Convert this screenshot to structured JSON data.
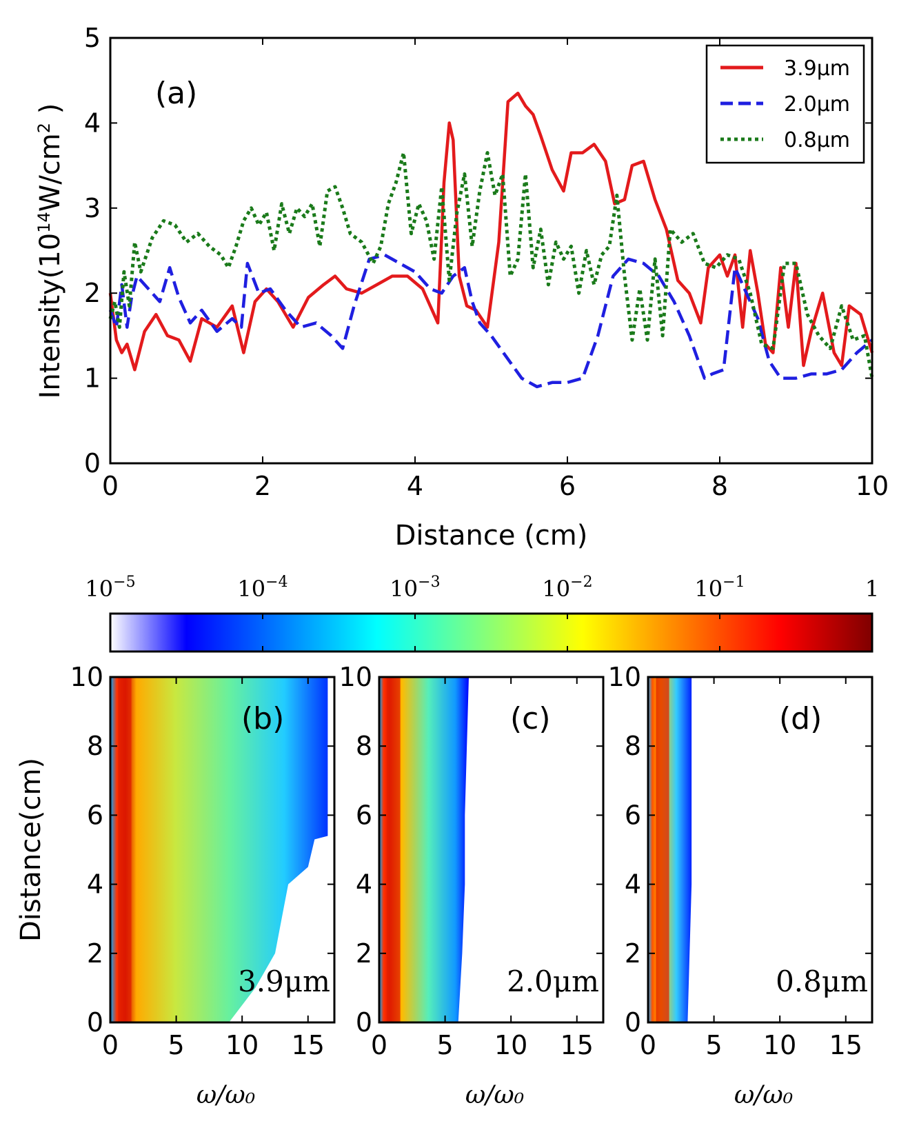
{
  "chart_data": [
    {
      "type": "line",
      "panel_label": "(a)",
      "xlabel": "Distance (cm)",
      "ylabel_main": "Intensity(10",
      "ylabel_exp1": "14",
      "ylabel_mid": "W/cm",
      "ylabel_exp2": "2",
      "ylabel_end": " )",
      "xlim": [
        0,
        10
      ],
      "ylim": [
        0,
        5
      ],
      "xticks": [
        "0",
        "2",
        "4",
        "6",
        "8",
        "10"
      ],
      "yticks": [
        "0",
        "1",
        "2",
        "3",
        "4",
        "5"
      ],
      "legend_position": "top-right",
      "series": [
        {
          "name": "3.9μm",
          "color": "#e31a1c",
          "style": "solid",
          "x": [
            0,
            0.08,
            0.15,
            0.22,
            0.32,
            0.45,
            0.6,
            0.75,
            0.9,
            1.05,
            1.2,
            1.4,
            1.6,
            1.75,
            1.9,
            2.05,
            2.2,
            2.4,
            2.6,
            2.8,
            2.95,
            3.1,
            3.3,
            3.5,
            3.7,
            3.9,
            4.1,
            4.3,
            4.38,
            4.45,
            4.5,
            4.58,
            4.68,
            4.8,
            4.95,
            5.1,
            5.22,
            5.35,
            5.45,
            5.55,
            5.65,
            5.8,
            5.95,
            6.05,
            6.2,
            6.35,
            6.5,
            6.62,
            6.75,
            6.85,
            7.0,
            7.15,
            7.3,
            7.45,
            7.6,
            7.75,
            7.85,
            8.0,
            8.1,
            8.2,
            8.3,
            8.4,
            8.5,
            8.6,
            8.7,
            8.8,
            8.9,
            9.0,
            9.1,
            9.2,
            9.35,
            9.5,
            9.6,
            9.7,
            9.85,
            10.0
          ],
          "y": [
            2.0,
            1.45,
            1.3,
            1.4,
            1.1,
            1.55,
            1.75,
            1.5,
            1.45,
            1.2,
            1.7,
            1.6,
            1.85,
            1.3,
            1.9,
            2.05,
            1.9,
            1.6,
            1.95,
            2.1,
            2.2,
            2.05,
            2.0,
            2.1,
            2.2,
            2.2,
            2.05,
            1.65,
            3.3,
            4.0,
            3.8,
            2.2,
            1.85,
            1.8,
            1.6,
            2.6,
            4.25,
            4.35,
            4.2,
            4.1,
            3.85,
            3.45,
            3.2,
            3.65,
            3.65,
            3.75,
            3.55,
            3.05,
            3.1,
            3.5,
            3.55,
            3.1,
            2.75,
            2.15,
            2.0,
            1.65,
            2.3,
            2.45,
            2.2,
            2.45,
            1.6,
            2.5,
            2.0,
            1.4,
            1.3,
            2.3,
            1.6,
            2.35,
            1.15,
            1.55,
            2.0,
            1.3,
            1.15,
            1.85,
            1.75,
            1.3
          ]
        },
        {
          "name": "2.0μm",
          "color": "#1f1fe0",
          "style": "dashed",
          "x": [
            0,
            0.08,
            0.15,
            0.22,
            0.28,
            0.35,
            0.5,
            0.65,
            0.78,
            0.9,
            1.05,
            1.2,
            1.4,
            1.6,
            1.72,
            1.8,
            1.95,
            2.1,
            2.3,
            2.5,
            2.7,
            2.9,
            3.05,
            3.2,
            3.4,
            3.6,
            3.8,
            4.0,
            4.2,
            4.35,
            4.5,
            4.65,
            4.75,
            4.85,
            5.0,
            5.2,
            5.4,
            5.6,
            5.8,
            6.0,
            6.2,
            6.4,
            6.6,
            6.8,
            7.0,
            7.2,
            7.4,
            7.6,
            7.8,
            7.9,
            8.05,
            8.2,
            8.35,
            8.5,
            8.65,
            8.8,
            9.0,
            9.2,
            9.4,
            9.6,
            9.8,
            10.0
          ],
          "y": [
            1.8,
            1.6,
            2.1,
            1.6,
            1.95,
            2.2,
            2.05,
            1.9,
            2.3,
            1.95,
            1.65,
            1.8,
            1.55,
            1.7,
            1.6,
            2.35,
            2.0,
            2.05,
            1.8,
            1.6,
            1.65,
            1.5,
            1.35,
            1.85,
            2.4,
            2.45,
            2.35,
            2.25,
            2.05,
            2.0,
            2.2,
            2.3,
            1.9,
            1.65,
            1.5,
            1.25,
            1.0,
            0.9,
            0.95,
            0.95,
            1.0,
            1.5,
            2.2,
            2.4,
            2.35,
            2.2,
            1.9,
            1.5,
            1.0,
            1.05,
            1.1,
            2.3,
            2.0,
            1.7,
            1.2,
            1.0,
            1.0,
            1.05,
            1.05,
            1.1,
            1.3,
            1.45
          ]
        },
        {
          "name": "0.8μm",
          "color": "#1a7a1a",
          "style": "dotted",
          "x": [
            0,
            0.06,
            0.12,
            0.18,
            0.25,
            0.32,
            0.4,
            0.55,
            0.7,
            0.85,
            1.0,
            1.15,
            1.3,
            1.45,
            1.55,
            1.65,
            1.75,
            1.85,
            1.95,
            2.05,
            2.15,
            2.25,
            2.35,
            2.45,
            2.55,
            2.65,
            2.75,
            2.85,
            2.95,
            3.05,
            3.15,
            3.3,
            3.45,
            3.55,
            3.65,
            3.75,
            3.85,
            3.95,
            4.05,
            4.15,
            4.25,
            4.35,
            4.45,
            4.55,
            4.65,
            4.75,
            4.85,
            4.95,
            5.05,
            5.15,
            5.25,
            5.35,
            5.45,
            5.55,
            5.65,
            5.75,
            5.85,
            5.95,
            6.05,
            6.15,
            6.25,
            6.35,
            6.45,
            6.55,
            6.65,
            6.75,
            6.85,
            6.95,
            7.05,
            7.15,
            7.25,
            7.35,
            7.5,
            7.65,
            7.8,
            7.95,
            8.1,
            8.25,
            8.4,
            8.55,
            8.7,
            8.85,
            9.0,
            9.15,
            9.3,
            9.45,
            9.6,
            9.75,
            9.9,
            10.0
          ],
          "y": [
            1.7,
            1.9,
            1.6,
            2.25,
            1.85,
            2.6,
            2.25,
            2.65,
            2.85,
            2.8,
            2.6,
            2.7,
            2.55,
            2.45,
            2.3,
            2.55,
            2.85,
            3.0,
            2.8,
            2.95,
            2.5,
            3.05,
            2.7,
            3.0,
            2.9,
            3.05,
            2.55,
            3.2,
            3.25,
            3.0,
            2.7,
            2.6,
            2.35,
            2.55,
            3.05,
            3.3,
            3.65,
            2.7,
            3.05,
            2.85,
            2.4,
            3.25,
            2.15,
            2.95,
            3.4,
            2.55,
            3.2,
            3.65,
            3.15,
            3.4,
            2.2,
            2.4,
            3.4,
            2.3,
            2.75,
            2.1,
            2.6,
            2.4,
            2.55,
            2.0,
            2.5,
            2.1,
            2.45,
            2.55,
            3.15,
            2.2,
            1.45,
            2.05,
            1.45,
            2.4,
            1.5,
            2.75,
            2.6,
            2.7,
            2.35,
            2.3,
            2.45,
            2.4,
            2.0,
            1.4,
            1.35,
            2.35,
            2.35,
            1.75,
            1.5,
            1.35,
            1.85,
            1.45,
            1.5,
            1.0
          ]
        }
      ]
    },
    {
      "type": "colorbar",
      "scale": "log",
      "tick_labels": [
        "10",
        "10",
        "10",
        "10",
        "10",
        "1"
      ],
      "tick_exponents": [
        "−5",
        "−4",
        "−3",
        "−2",
        "−1",
        ""
      ],
      "range": [
        1e-05,
        1
      ],
      "colormap": [
        "#ffffff",
        "#0000ff",
        "#00ffff",
        "#ffff00",
        "#ff0000",
        "#7f0000"
      ]
    },
    {
      "type": "heatmap",
      "panel_label": "(b)",
      "annotation": "3.9μm",
      "xlabel": "ω/ω₀",
      "ylabel": "Distance(cm)",
      "xlim": [
        0,
        17
      ],
      "ylim": [
        0,
        10
      ],
      "xticks": [
        "0",
        "5",
        "10",
        "15"
      ],
      "yticks": [
        "0",
        "2",
        "4",
        "6",
        "8",
        "10"
      ],
      "cutoff_vs_distance": [
        [
          0,
          9
        ],
        [
          1,
          11
        ],
        [
          2,
          12.5
        ],
        [
          3,
          13
        ],
        [
          4,
          13.5
        ],
        [
          4.5,
          15
        ],
        [
          5.3,
          15.5
        ],
        [
          5.4,
          16.5
        ],
        [
          10,
          16.5
        ]
      ]
    },
    {
      "type": "heatmap",
      "panel_label": "(c)",
      "annotation": "2.0μm",
      "xlabel": "ω/ω₀",
      "xlim": [
        0,
        17
      ],
      "ylim": [
        0,
        10
      ],
      "xticks": [
        "0",
        "5",
        "10",
        "15"
      ],
      "yticks": [
        "0",
        "2",
        "4",
        "6",
        "8",
        "10"
      ],
      "cutoff_vs_distance": [
        [
          0,
          6
        ],
        [
          2,
          6.3
        ],
        [
          4,
          6.5
        ],
        [
          6,
          6.5
        ],
        [
          10,
          6.8
        ]
      ]
    },
    {
      "type": "heatmap",
      "panel_label": "(d)",
      "annotation": "0.8μm",
      "xlabel": "ω/ω₀",
      "xlim": [
        0,
        17
      ],
      "ylim": [
        0,
        10
      ],
      "xticks": [
        "0",
        "5",
        "10",
        "15"
      ],
      "yticks": [
        "0",
        "2",
        "4",
        "6",
        "8",
        "10"
      ],
      "cutoff_vs_distance": [
        [
          0,
          3
        ],
        [
          4,
          3.3
        ],
        [
          10,
          3.3
        ]
      ]
    }
  ]
}
